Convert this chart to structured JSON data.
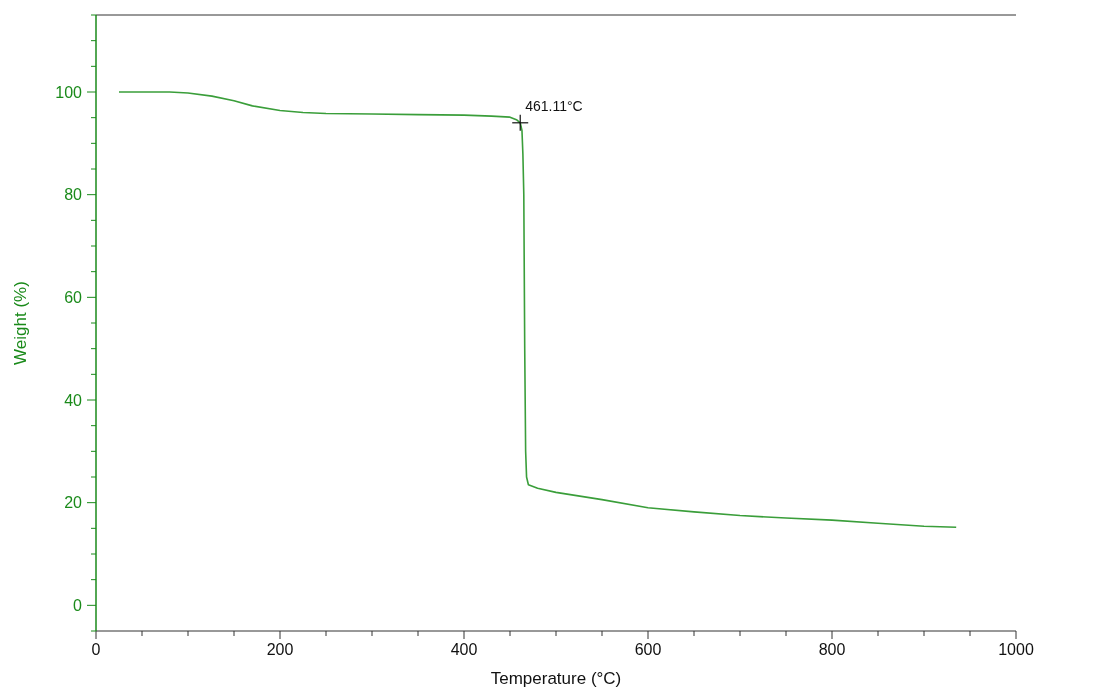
{
  "chart_data": {
    "type": "line",
    "xlabel": "Temperature (°C)",
    "ylabel": "Weight (%)",
    "xlim": [
      0,
      1000
    ],
    "ylim": [
      -5,
      115
    ],
    "xticks": [
      0,
      {
        "value": 50,
        "label": null
      },
      200,
      {
        "value": 100,
        "label": null
      },
      {
        "value": 150,
        "label": null
      },
      {
        "value": 250,
        "label": null
      },
      {
        "value": 300,
        "label": null
      },
      {
        "value": 350,
        "label": null
      },
      400,
      {
        "value": 450,
        "label": null
      },
      {
        "value": 500,
        "label": null
      },
      {
        "value": 550,
        "label": null
      },
      600,
      {
        "value": 650,
        "label": null
      },
      {
        "value": 700,
        "label": null
      },
      {
        "value": 750,
        "label": null
      },
      800,
      {
        "value": 850,
        "label": null
      },
      {
        "value": 900,
        "label": null
      },
      {
        "value": 950,
        "label": null
      },
      1000
    ],
    "yticks": [
      {
        "value": -5,
        "label": null
      },
      0,
      {
        "value": 5,
        "label": null
      },
      {
        "value": 10,
        "label": null
      },
      {
        "value": 15,
        "label": null
      },
      20,
      {
        "value": 25,
        "label": null
      },
      {
        "value": 30,
        "label": null
      },
      {
        "value": 35,
        "label": null
      },
      40,
      {
        "value": 45,
        "label": null
      },
      {
        "value": 50,
        "label": null
      },
      {
        "value": 55,
        "label": null
      },
      60,
      {
        "value": 65,
        "label": null
      },
      {
        "value": 70,
        "label": null
      },
      {
        "value": 75,
        "label": null
      },
      80,
      {
        "value": 85,
        "label": null
      },
      {
        "value": 90,
        "label": null
      },
      {
        "value": 95,
        "label": null
      },
      100,
      {
        "value": 105,
        "label": null
      },
      {
        "value": 110,
        "label": null
      },
      {
        "value": 115,
        "label": null
      }
    ],
    "marker": "none",
    "line_style": "solid",
    "series": [
      {
        "color": "#3a9e3a",
        "x": [
          25,
          80,
          100,
          126,
          150,
          170,
          200,
          225,
          250,
          300,
          350,
          400,
          430,
          450,
          457,
          461.11,
          463,
          464,
          465,
          466,
          467,
          468,
          470,
          480,
          500,
          550,
          600,
          650,
          700,
          750,
          800,
          850,
          900,
          935
        ],
        "values": [
          100,
          100,
          99.8,
          99.2,
          98.3,
          97.3,
          96.4,
          96,
          95.8,
          95.7,
          95.6,
          95.5,
          95.3,
          95.1,
          94.6,
          94,
          92.5,
          88,
          80,
          50,
          30,
          25,
          23.5,
          22.8,
          22,
          20.6,
          19,
          18.2,
          17.5,
          17,
          16.6,
          16,
          15.4,
          15.2
        ]
      }
    ],
    "annotations": [
      {
        "text": "461.11°C",
        "x": 461.11,
        "y": 94
      }
    ]
  }
}
